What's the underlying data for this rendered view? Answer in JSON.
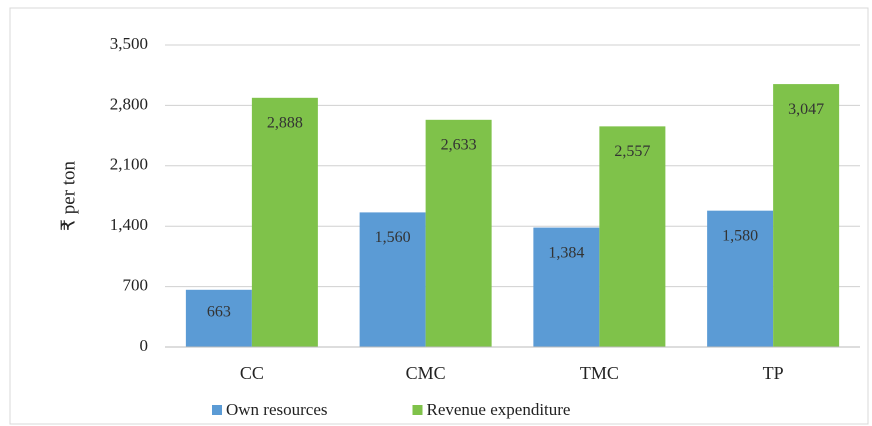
{
  "chart_data": {
    "type": "bar",
    "y_label": "₹ per ton",
    "categories": [
      "CC",
      "CMC",
      "TMC",
      "TP"
    ],
    "series": [
      {
        "name": "Own resources",
        "color": "#5b9bd5",
        "values": [
          663,
          1560,
          1384,
          1580
        ],
        "value_labels": [
          "663",
          "1,560",
          "1,384",
          "1,580"
        ]
      },
      {
        "name": "Revenue expenditure",
        "color": "#7fc24a",
        "values": [
          2888,
          2633,
          2557,
          3047
        ],
        "value_labels": [
          "2,888",
          "2,633",
          "2,557",
          "3,047"
        ]
      }
    ],
    "ylim": [
      0,
      3500
    ],
    "yticks": [
      0,
      700,
      {
        "value": 1400,
        "label": "1,400"
      },
      {
        "value": 2100,
        "label": "2,100"
      },
      {
        "value": 2800,
        "label": "2,800"
      },
      {
        "value": 3500,
        "label": "3,500"
      }
    ],
    "grid": true,
    "legend": "bottom"
  }
}
